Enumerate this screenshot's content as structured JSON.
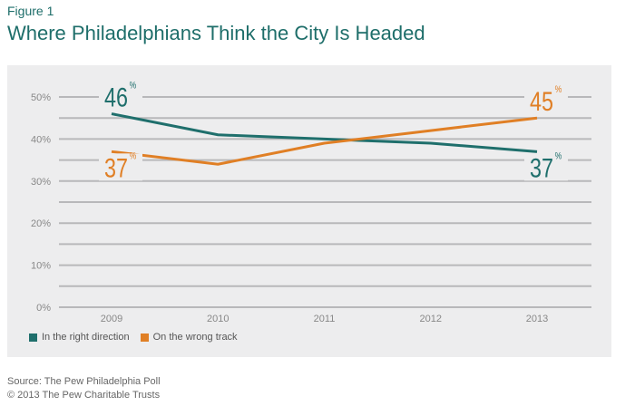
{
  "figure_label": "Figure 1",
  "chart_data": {
    "type": "line",
    "title": "Where Philadelphians Think the City Is Headed",
    "categories": [
      "2009",
      "2010",
      "2011",
      "2012",
      "2013"
    ],
    "ylim": [
      0,
      50
    ],
    "yticks": [
      "0%",
      "10%",
      "20%",
      "30%",
      "40%",
      "50%"
    ],
    "grid": true,
    "legend_position": "bottom-left",
    "series": [
      {
        "name": "In the right direction",
        "color": "#1f6f6c",
        "values": [
          46,
          41,
          40,
          39,
          37
        ],
        "end_labels": [
          "46",
          "37"
        ]
      },
      {
        "name": "On the wrong track",
        "color": "#e07f25",
        "values": [
          37,
          34,
          39,
          42,
          45
        ],
        "end_labels": [
          "37",
          "45"
        ]
      }
    ],
    "label_suffix": "%"
  },
  "source": "Source: The Pew Philadelphia Poll",
  "copyright": "© 2013 The Pew Charitable Trusts"
}
